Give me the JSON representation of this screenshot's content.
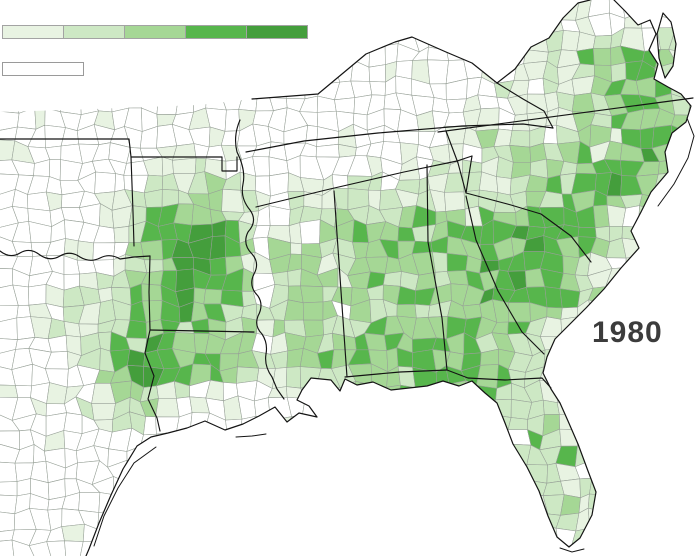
{
  "map": {
    "year_label": "1980",
    "description": "County-level choropleth map of the southeastern United States shaded in five greens",
    "legend": {
      "scale_colors": [
        "#e8f3e2",
        "#cde8c4",
        "#a5d795",
        "#57b64c",
        "#449e3c"
      ],
      "no_data_color": "#ffffff",
      "swatch_border_color": "#a3a3a3"
    },
    "colors": {
      "state_border": "#141414",
      "county_border": "#97a097",
      "sea": "#ffffff",
      "year_text": "#3c3c3c"
    },
    "density_grid": {
      "note": "shading intensity 0 (white/no data) to 5 (darkest green); 20 columns x 16 rows covering the 700x556 map area",
      "rows": [
        "00000000000000000000",
        "00000000000000012332",
        "00000000000000112343",
        "00000000000001112343",
        "00001110000012223442",
        "00012220111121233431",
        "00014540233333443320",
        "00014541333344443200",
        "01124441323334443000",
        "01234422233334320000",
        "00245432334344320000",
        "00133100002333220000",
        "00000000000001221000",
        "00000000000000122000",
        "00000000000000112100",
        "00000000000000011000"
      ]
    }
  }
}
